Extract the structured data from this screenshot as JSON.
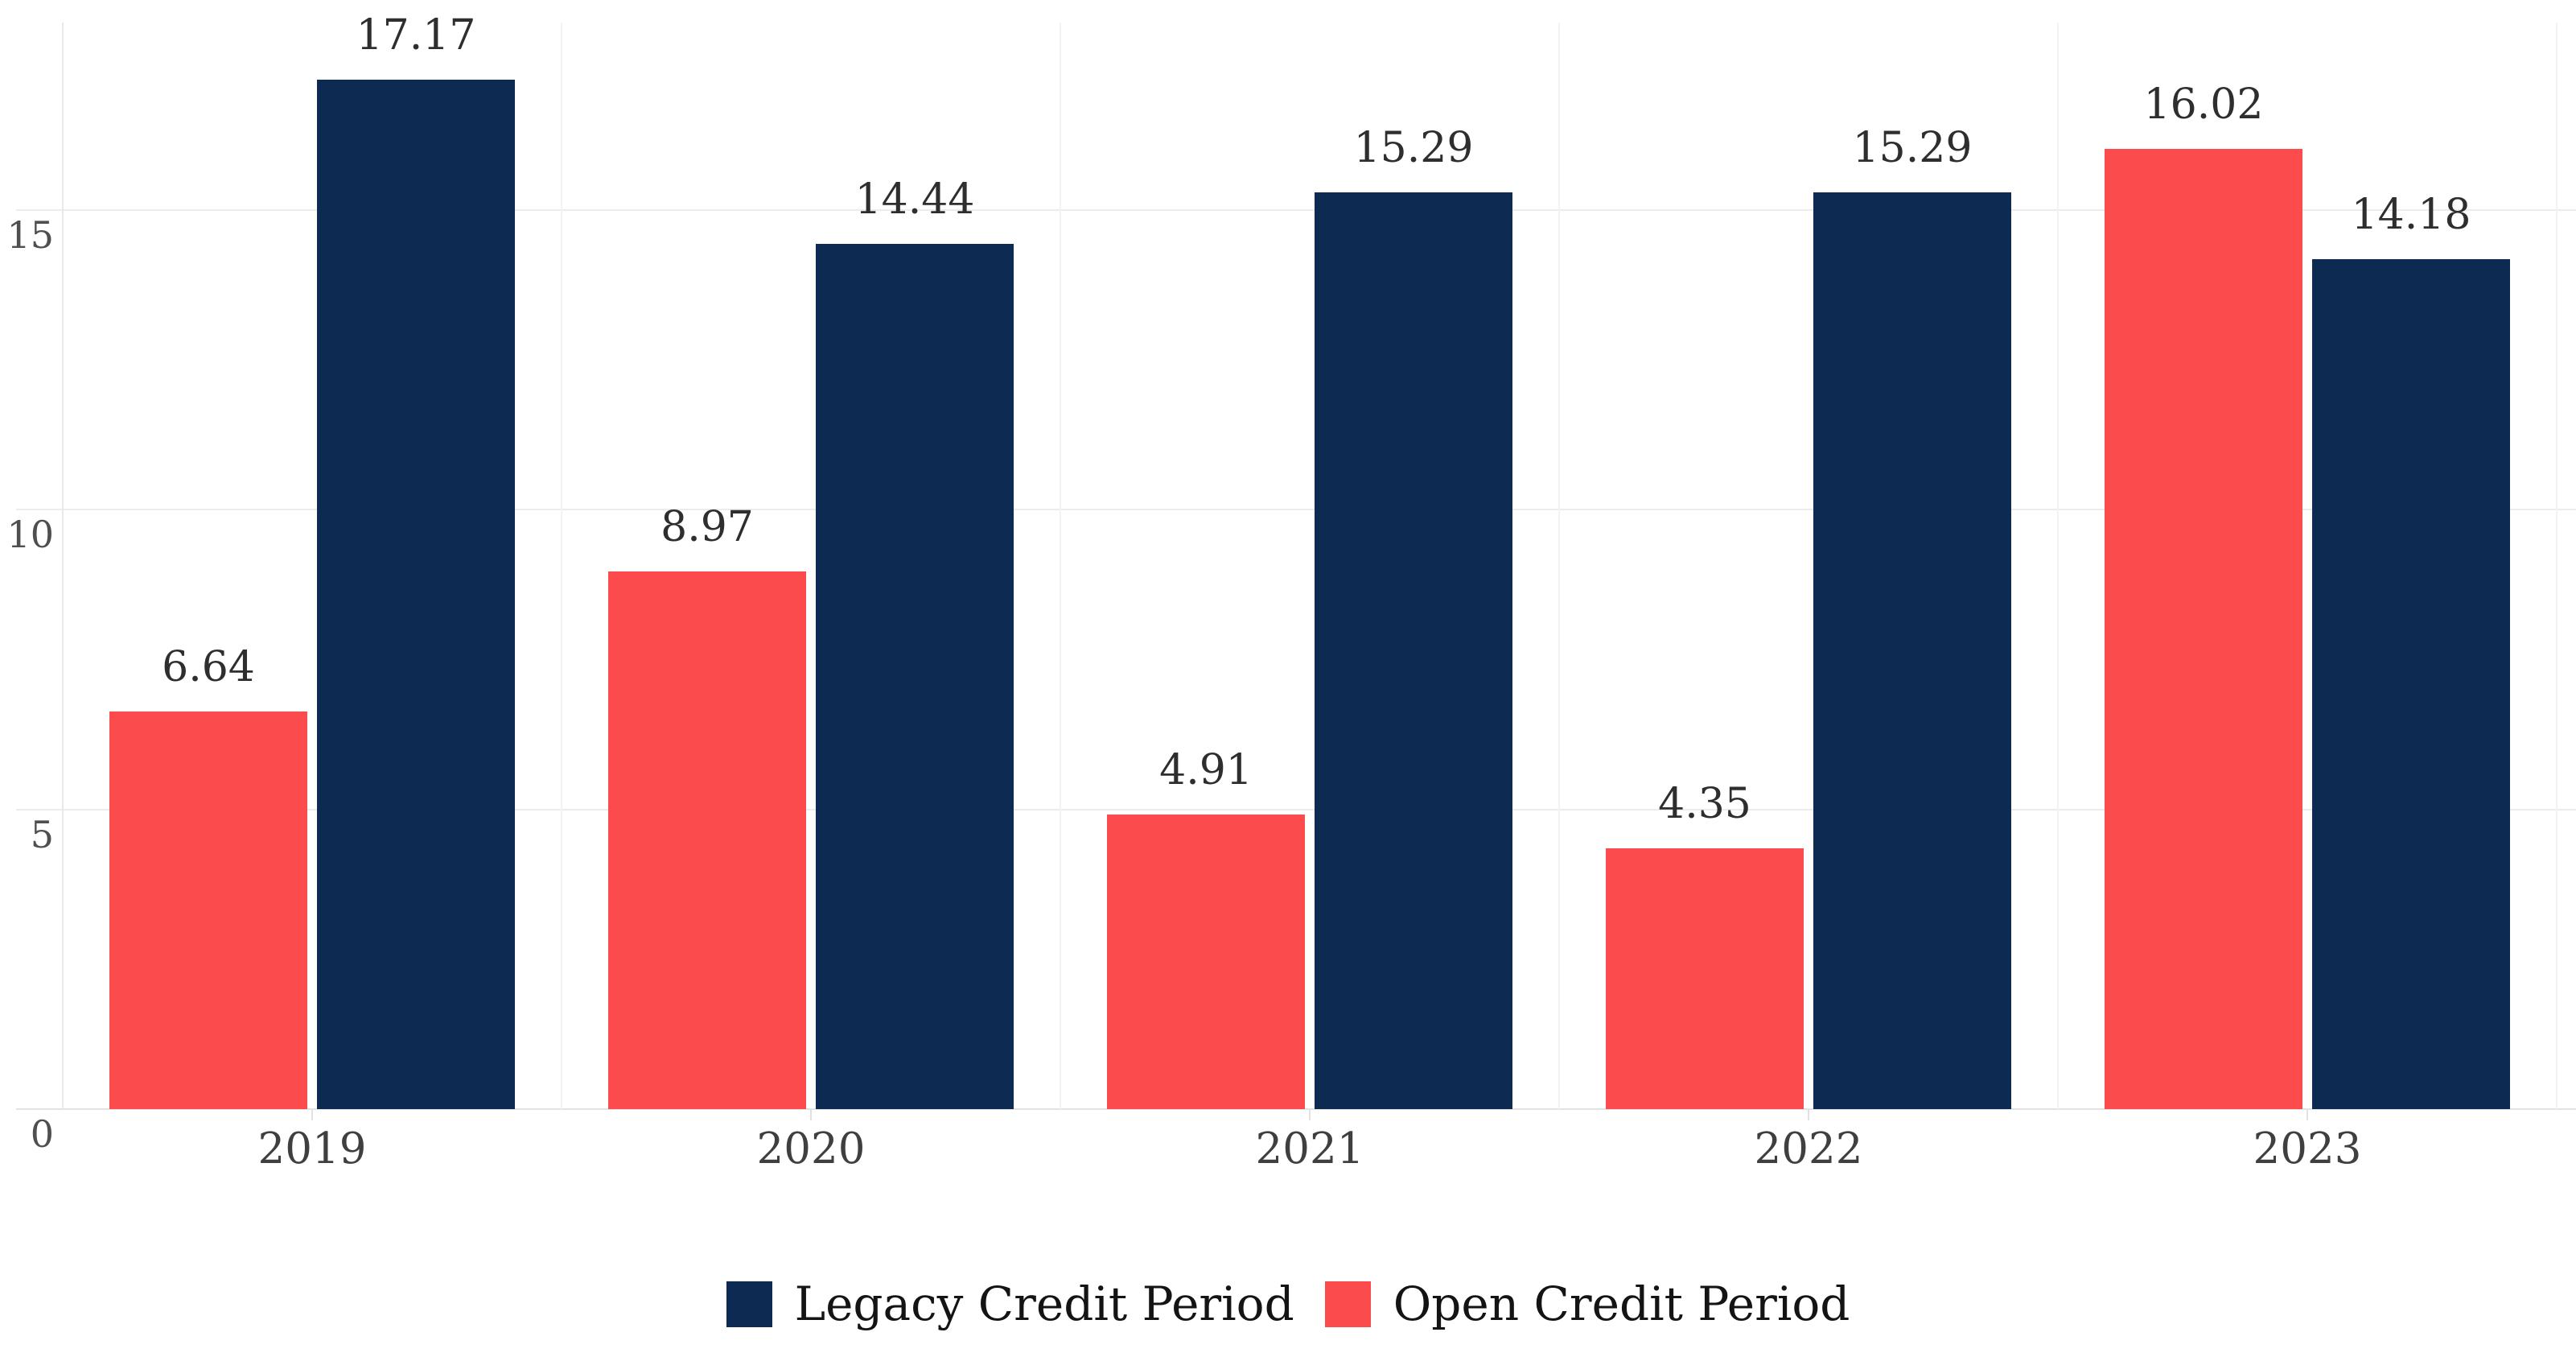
{
  "chart_data": {
    "type": "bar",
    "title": "",
    "xlabel": "",
    "ylabel": "",
    "categories": [
      "2019",
      "2020",
      "2021",
      "2022",
      "2023"
    ],
    "series": [
      {
        "name": "Legacy Credit Period",
        "color": "#0d2a52",
        "column": 1,
        "values": [
          17.17,
          14.44,
          15.29,
          15.29,
          14.18
        ]
      },
      {
        "name": "Open Credit Period",
        "color": "#fb4b4d",
        "column": 0,
        "values": [
          6.64,
          8.97,
          4.91,
          4.35,
          16.02
        ]
      }
    ],
    "value_labels": [
      [
        "17.17",
        "14.44",
        "15.29",
        "15.29",
        "14.18"
      ],
      [
        "6.64",
        "8.97",
        "4.91",
        "4.35",
        "16.02"
      ]
    ],
    "yticks": [
      0,
      5,
      10,
      15
    ],
    "ytick_labels": [
      "0",
      "5",
      "10",
      "15"
    ],
    "ylim": [
      0,
      18.13
    ],
    "grid": "horizontal-gridlines-plus-faint-category-boundaries",
    "legend_position": "bottom-center",
    "legend": [
      "Legacy Credit Period",
      "Open Credit Period"
    ]
  },
  "colors": {
    "background": "#ffffff",
    "gridline": "#ececec",
    "axis_baseline": "#e2e2e2",
    "value_label_text": "#2e2e2e",
    "y_tick_text": "#4f4f4f",
    "x_tick_text": "#3f3f3f",
    "legend_text": "#141414"
  }
}
